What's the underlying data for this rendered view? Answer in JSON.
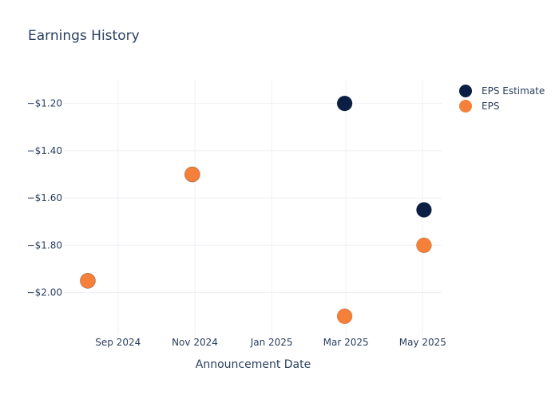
{
  "chart_data": {
    "type": "scatter",
    "title": "Earnings History",
    "xlabel": "Announcement Date",
    "ylabel": "",
    "x_ticks": [
      {
        "date": "2024-09-01",
        "label": "Sep 2024"
      },
      {
        "date": "2024-11-01",
        "label": "Nov 2024"
      },
      {
        "date": "2025-01-01",
        "label": "Jan 2025"
      },
      {
        "date": "2025-03-01",
        "label": "Mar 2025"
      },
      {
        "date": "2025-05-01",
        "label": "May 2025"
      }
    ],
    "y_ticks": [
      {
        "value": -1.2,
        "label": "−$1.20"
      },
      {
        "value": -1.4,
        "label": "−$1.40"
      },
      {
        "value": -1.6,
        "label": "−$1.60"
      },
      {
        "value": -1.8,
        "label": "−$1.80"
      },
      {
        "value": -2.0,
        "label": "−$2.00"
      }
    ],
    "xlim": [
      "2024-07-20",
      "2025-05-16"
    ],
    "ylim": [
      -2.18,
      -1.1
    ],
    "grid": true,
    "legend_position": "top-right",
    "series": [
      {
        "name": "EPS Estimate",
        "color": "#0b1f44",
        "points": [
          {
            "x": "2024-08-08",
            "y": -1.95
          },
          {
            "x": "2024-10-30",
            "y": -1.5
          },
          {
            "x": "2025-02-28",
            "y": -1.2
          },
          {
            "x": "2025-05-02",
            "y": -1.65
          }
        ]
      },
      {
        "name": "EPS",
        "color": "#f5803a",
        "points": [
          {
            "x": "2024-08-08",
            "y": -1.95
          },
          {
            "x": "2024-10-30",
            "y": -1.5
          },
          {
            "x": "2025-02-28",
            "y": -2.1
          },
          {
            "x": "2025-05-02",
            "y": -1.8
          }
        ]
      }
    ]
  }
}
